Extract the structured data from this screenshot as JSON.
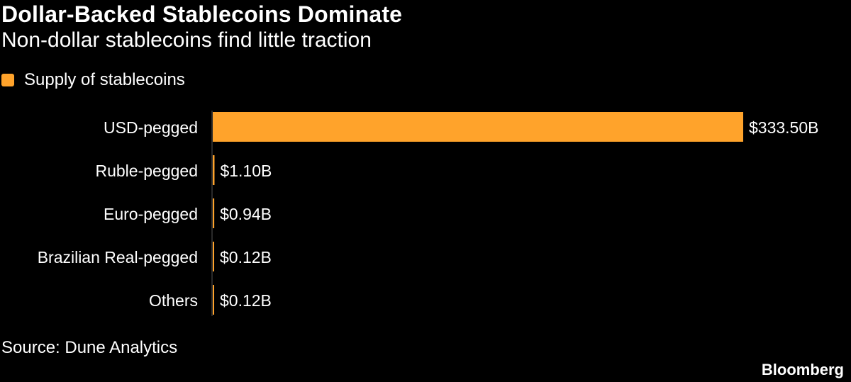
{
  "chart_data": {
    "type": "bar",
    "orientation": "horizontal",
    "title": "Dollar-Backed Stablecoins Dominate",
    "subtitle": "Non-dollar stablecoins find little traction",
    "legend": [
      {
        "label": "Supply of stablecoins",
        "color": "#ffa32b"
      }
    ],
    "categories": [
      "USD-pegged",
      "Ruble-pegged",
      "Euro-pegged",
      "Brazilian Real-pegged",
      "Others"
    ],
    "series": [
      {
        "name": "Supply of stablecoins",
        "values": [
          333.5,
          1.1,
          0.94,
          0.12,
          0.12
        ],
        "color": "#ffa32b"
      }
    ],
    "value_labels": [
      "$333.50B",
      "$1.10B",
      "$0.94B",
      "$0.12B",
      "$0.12B"
    ],
    "unit": "billion USD",
    "xlim": [
      0,
      333.5
    ],
    "source": "Source: Dune Analytics"
  },
  "footer": {
    "brand": "Bloomberg"
  },
  "colors": {
    "background": "#000000",
    "text": "#ffffff",
    "accent": "#ffa32b",
    "axis": "#555555"
  }
}
